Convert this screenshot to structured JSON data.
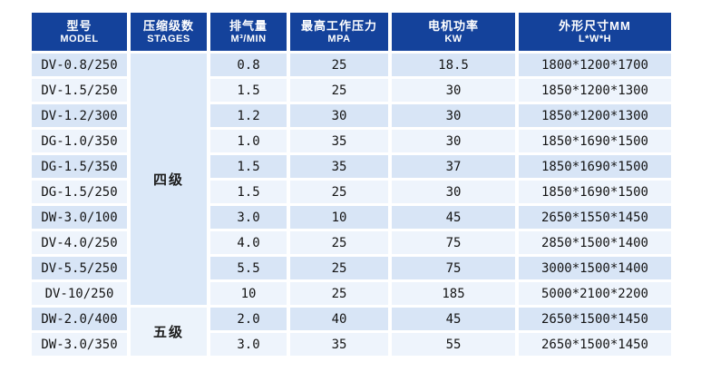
{
  "colors": {
    "header_bg": "#14429b",
    "header_text": "#ffffff",
    "row_odd": "#d8e5f6",
    "row_even": "#eef4fc",
    "stage_four_bg": "#dbe8f8",
    "stage_five_bg": "#ecf3fb",
    "cell_text": "#141414"
  },
  "table": {
    "headers": [
      {
        "zh": "型号",
        "en": "MODEL"
      },
      {
        "zh": "压缩级数",
        "en": "STAGES"
      },
      {
        "zh": "排气量",
        "en": "M³/MIN"
      },
      {
        "zh": "最高工作压力",
        "en": "MPA"
      },
      {
        "zh": "电机功率",
        "en": "KW"
      },
      {
        "zh": "外形尺寸MM",
        "en": "L*W*H"
      }
    ],
    "stage_groups": [
      {
        "label": "四级",
        "row_span": 10
      },
      {
        "label": "五级",
        "row_span": 2
      }
    ],
    "rows": [
      {
        "model": "DV-0.8/250",
        "displacement": "0.8",
        "pressure": "25",
        "power": "18.5",
        "dimensions": "1800*1200*1700"
      },
      {
        "model": "DV-1.5/250",
        "displacement": "1.5",
        "pressure": "25",
        "power": "30",
        "dimensions": "1850*1200*1300"
      },
      {
        "model": "DV-1.2/300",
        "displacement": "1.2",
        "pressure": "30",
        "power": "30",
        "dimensions": "1850*1200*1300"
      },
      {
        "model": "DG-1.0/350",
        "displacement": "1.0",
        "pressure": "35",
        "power": "30",
        "dimensions": "1850*1690*1500"
      },
      {
        "model": "DG-1.5/350",
        "displacement": "1.5",
        "pressure": "35",
        "power": "37",
        "dimensions": "1850*1690*1500"
      },
      {
        "model": "DG-1.5/250",
        "displacement": "1.5",
        "pressure": "25",
        "power": "30",
        "dimensions": "1850*1690*1500"
      },
      {
        "model": "DW-3.0/100",
        "displacement": "3.0",
        "pressure": "10",
        "power": "45",
        "dimensions": "2650*1550*1450"
      },
      {
        "model": "DV-4.0/250",
        "displacement": "4.0",
        "pressure": "25",
        "power": "75",
        "dimensions": "2850*1500*1400"
      },
      {
        "model": "DV-5.5/250",
        "displacement": "5.5",
        "pressure": "25",
        "power": "75",
        "dimensions": "3000*1500*1400"
      },
      {
        "model": "DV-10/250",
        "displacement": "10",
        "pressure": "25",
        "power": "185",
        "dimensions": "5000*2100*2200"
      },
      {
        "model": "DW-2.0/400",
        "displacement": "2.0",
        "pressure": "40",
        "power": "45",
        "dimensions": "2650*1500*1450"
      },
      {
        "model": "DW-3.0/350",
        "displacement": "3.0",
        "pressure": "35",
        "power": "55",
        "dimensions": "2650*1500*1450"
      }
    ]
  }
}
